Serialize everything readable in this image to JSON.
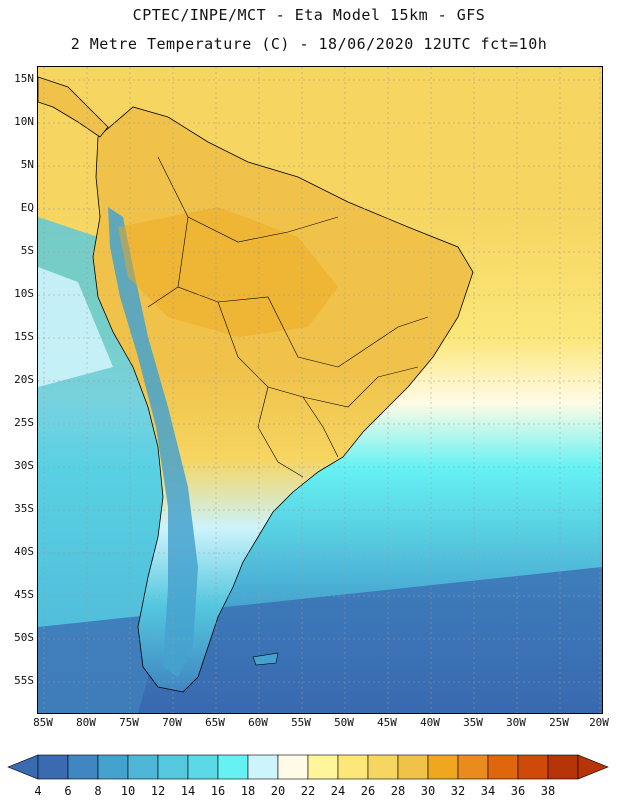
{
  "header": {
    "line1": "CPTEC/INPE/MCT -  Eta Model 15km - GFS",
    "line2": "2 Metre Temperature (C) - 18/06/2020 12UTC fct=10h"
  },
  "map": {
    "lat_labels": [
      "15N",
      "10N",
      "5N",
      "EQ",
      "5S",
      "10S",
      "15S",
      "20S",
      "25S",
      "30S",
      "35S",
      "40S",
      "45S",
      "50S",
      "55S"
    ],
    "lon_labels": [
      "85W",
      "80W",
      "75W",
      "70W",
      "65W",
      "60W",
      "55W",
      "50W",
      "45W",
      "40W",
      "35W",
      "30W",
      "25W",
      "20W"
    ]
  },
  "colorbar": {
    "labels": [
      "4",
      "6",
      "8",
      "10",
      "12",
      "14",
      "16",
      "18",
      "20",
      "22",
      "24",
      "26",
      "28",
      "30",
      "32",
      "34",
      "36",
      "38"
    ],
    "colors": [
      "#3a6ab0",
      "#3f86c2",
      "#45a2cf",
      "#4fb6d8",
      "#55c8df",
      "#5cd8e6",
      "#66f2f4",
      "#cdf3fb",
      "#fffbe6",
      "#fff59a",
      "#fbe77a",
      "#f6d560",
      "#f0c24a",
      "#eea71f",
      "#ea8b1e",
      "#e0660e",
      "#cf4a0a",
      "#b73408"
    ]
  },
  "legend_colors": {
    "land_warm": "#f0c24a",
    "ocean_cold": "#3a6ab0"
  }
}
